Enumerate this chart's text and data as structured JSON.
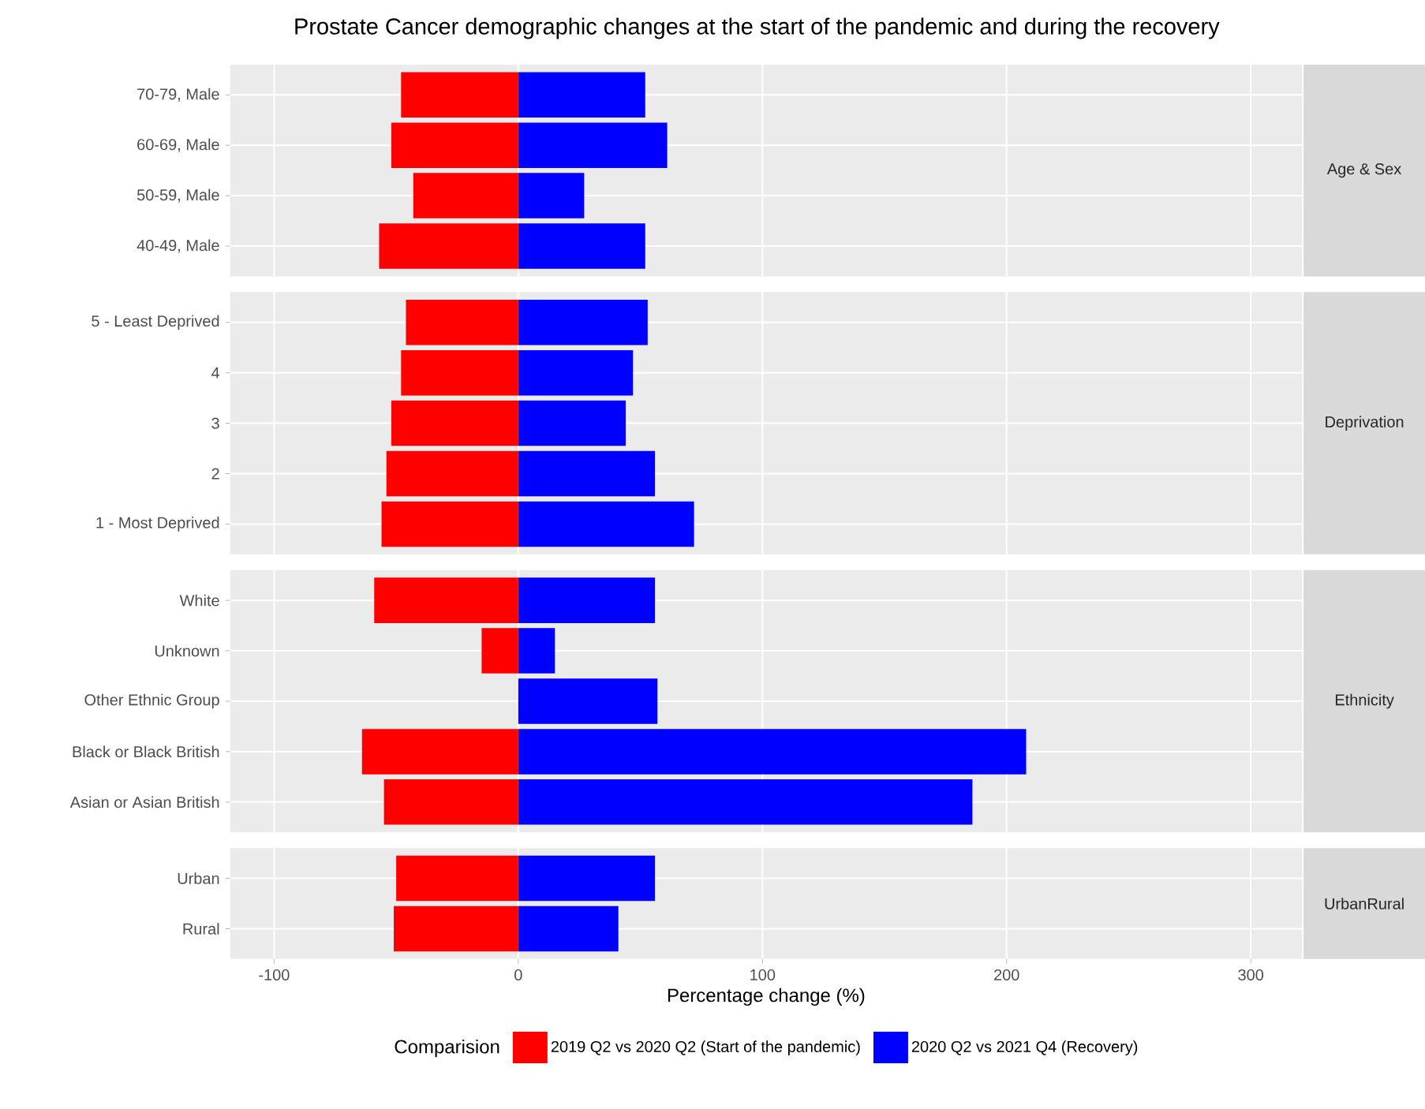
{
  "chart_data": [
    {
      "type": "bar",
      "orientation": "horizontal",
      "title": "Prostate Cancer demographic changes at the start of the pandemic and during the recovery",
      "y2label": "Age & Sex",
      "categories": [
        "70-79, Male",
        "60-69, Male",
        "50-59, Male",
        "40-49, Male"
      ],
      "series": [
        {
          "color": "#ff0000",
          "values": [
            -48,
            -52,
            -43,
            -57
          ]
        },
        {
          "color": "#0000ff",
          "values": [
            52,
            61,
            27,
            52
          ]
        }
      ],
      "xlim": [
        -118,
        321
      ],
      "xticks": [
        -100,
        0,
        100,
        200,
        300
      ],
      "tick_labels": "y",
      "grid": true,
      "stacked": true
    },
    {
      "type": "bar",
      "orientation": "horizontal",
      "y2label": "Deprivation",
      "categories": [
        "5 - Least Deprived",
        "4",
        "3",
        "2",
        "1 - Most Deprived"
      ],
      "series": [
        {
          "color": "#ff0000",
          "values": [
            -46,
            -48,
            -52,
            -54,
            -56
          ]
        },
        {
          "color": "#0000ff",
          "values": [
            53,
            47,
            44,
            56,
            72
          ]
        }
      ],
      "xlim": [
        -118,
        321
      ],
      "xticks": [
        -100,
        0,
        100,
        200,
        300
      ],
      "tick_labels": "y",
      "grid": true,
      "stacked": true
    },
    {
      "type": "bar",
      "orientation": "horizontal",
      "y2label": "Ethnicity",
      "categories": [
        "White",
        "Unknown",
        "Other Ethnic Group",
        "Black or Black British",
        "Asian or Asian British"
      ],
      "series": [
        {
          "color": "#ff0000",
          "values": [
            -59,
            -15,
            null,
            -64,
            -55
          ]
        },
        {
          "color": "#0000ff",
          "values": [
            56,
            15,
            57,
            208,
            186
          ]
        }
      ],
      "xlim": [
        -118,
        321
      ],
      "xticks": [
        -100,
        0,
        100,
        200,
        300
      ],
      "tick_labels": "y",
      "grid": true,
      "stacked": true
    },
    {
      "type": "bar",
      "orientation": "horizontal",
      "y2label": "UrbanRural",
      "xlabel": "Percentage change (%)",
      "legend_title": "Comparision",
      "legend": "bottom",
      "categories": [
        "Urban",
        "Rural"
      ],
      "series": [
        {
          "name": "2019 Q2 vs 2020 Q2 (Start of the pandemic)",
          "color": "#ff0000",
          "values": [
            -50,
            -51
          ]
        },
        {
          "name": "2020 Q2 vs 2021 Q4 (Recovery)",
          "color": "#0000ff",
          "values": [
            56,
            41
          ]
        }
      ],
      "xlim": [
        -118,
        321
      ],
      "xticks": [
        -100,
        0,
        100,
        200,
        300
      ],
      "grid": true,
      "stacked": true
    }
  ]
}
